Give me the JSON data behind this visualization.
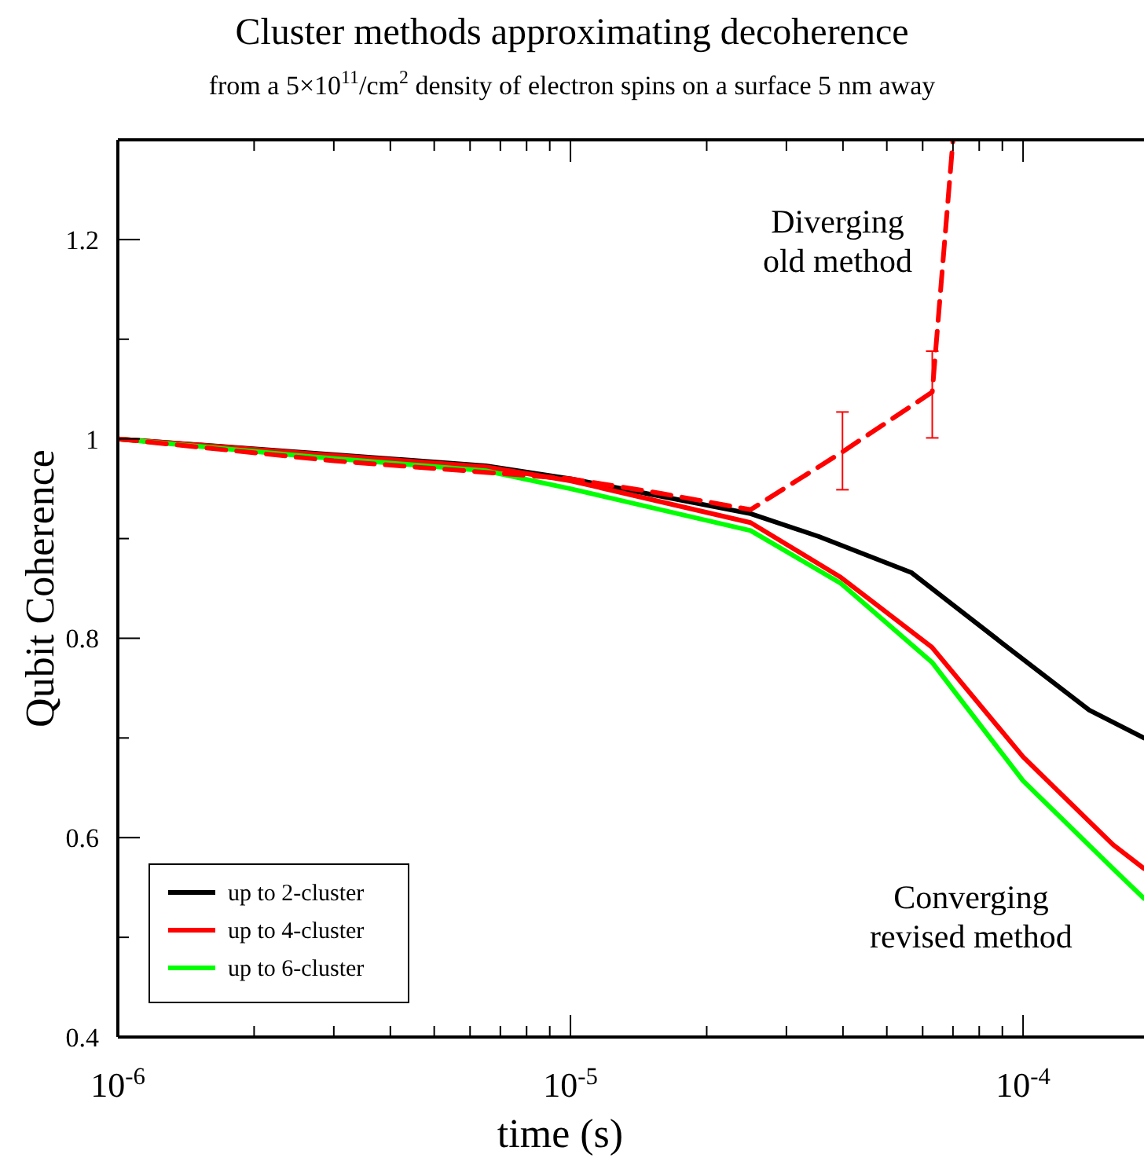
{
  "chart_data": {
    "type": "line",
    "title": "Cluster methods approximating decoherence",
    "subtitle": "from a 5×10$^{11}$/cm$^{2}$ density of electron spins on a surface 5 nm away",
    "xlabel": "time (s)",
    "ylabel": "Qubit Coherence",
    "log": "x",
    "xlim": [
      1e-06,
      0.000185
    ],
    "ylim": [
      0.4,
      1.3
    ],
    "xticks": [
      {
        "value": 1e-06,
        "label": "10$^{-6}$"
      },
      {
        "value": 2e-06,
        "label": null
      },
      {
        "value": 3e-06,
        "label": null
      },
      {
        "value": 4e-06,
        "label": null
      },
      {
        "value": 5e-06,
        "label": null
      },
      {
        "value": 6e-06,
        "label": null
      },
      {
        "value": 7e-06,
        "label": null
      },
      {
        "value": 8e-06,
        "label": null
      },
      {
        "value": 9e-06,
        "label": null
      },
      {
        "value": 1e-05,
        "label": "10$^{-5}$"
      },
      {
        "value": 2e-05,
        "label": null
      },
      {
        "value": 3e-05,
        "label": null
      },
      {
        "value": 4e-05,
        "label": null
      },
      {
        "value": 5e-05,
        "label": null
      },
      {
        "value": 6e-05,
        "label": null
      },
      {
        "value": 7e-05,
        "label": null
      },
      {
        "value": 8e-05,
        "label": null
      },
      {
        "value": 9e-05,
        "label": null
      },
      {
        "value": 0.0001,
        "label": "10$^{-4}$"
      }
    ],
    "yticks": [
      0.4,
      {
        "value": 0.5,
        "label": null
      },
      0.6,
      {
        "value": 0.7,
        "label": null
      },
      0.8,
      {
        "value": 0.9,
        "label": null
      },
      1,
      {
        "value": 1.1,
        "label": null
      },
      1.2
    ],
    "legend": "bottom left",
    "grid": false,
    "annotations": [
      "Diverging\nold method",
      "Converging\nrevised method"
    ],
    "series": [
      {
        "name": "up to 2-cluster",
        "color": "#000000",
        "x": [
          1e-06,
          6.5e-06,
          1e-05,
          2.5e-05,
          3.54e-05,
          5.66e-05,
          8.94e-05,
          0.00014,
          0.000185
        ],
        "values": [
          1.0,
          0.973,
          0.96,
          0.925,
          0.902,
          0.866,
          0.796,
          0.728,
          0.7
        ]
      },
      {
        "name": "up to 4-cluster",
        "color": "#ff0000",
        "x": [
          1e-06,
          2.7e-06,
          6.5e-06,
          1e-05,
          2.5e-05,
          3.96e-05,
          6.29e-05,
          0.0001,
          0.000158,
          0.000185
        ],
        "values": [
          1.0,
          0.985,
          0.972,
          0.958,
          0.916,
          0.861,
          0.791,
          0.681,
          0.593,
          0.569
        ]
      },
      {
        "name": "up to 6-cluster",
        "color": "#00ff00",
        "x": [
          1e-06,
          2.7e-06,
          6.5e-06,
          1e-05,
          2.5e-05,
          3.96e-05,
          6.29e-05,
          0.0001,
          0.000158,
          0.000185
        ],
        "values": [
          1.0,
          0.982,
          0.968,
          0.95,
          0.908,
          0.855,
          0.776,
          0.657,
          0.569,
          0.539
        ]
      },
      {
        "color": "#ff0000",
        "line_style": "dashed",
        "x": [
          1e-06,
          3e-06,
          1e-05,
          1.6e-05,
          2.5e-05,
          3.99e-05,
          6.3e-05,
          7e-05
        ],
        "values": [
          1.0,
          0.978,
          0.96,
          0.945,
          0.929,
          0.987,
          1.047,
          1.3
        ],
        "errors": [
          null,
          null,
          null,
          null,
          null,
          [
            0.949,
            1.027
          ],
          [
            1.001,
            1.088
          ],
          null
        ]
      }
    ]
  }
}
